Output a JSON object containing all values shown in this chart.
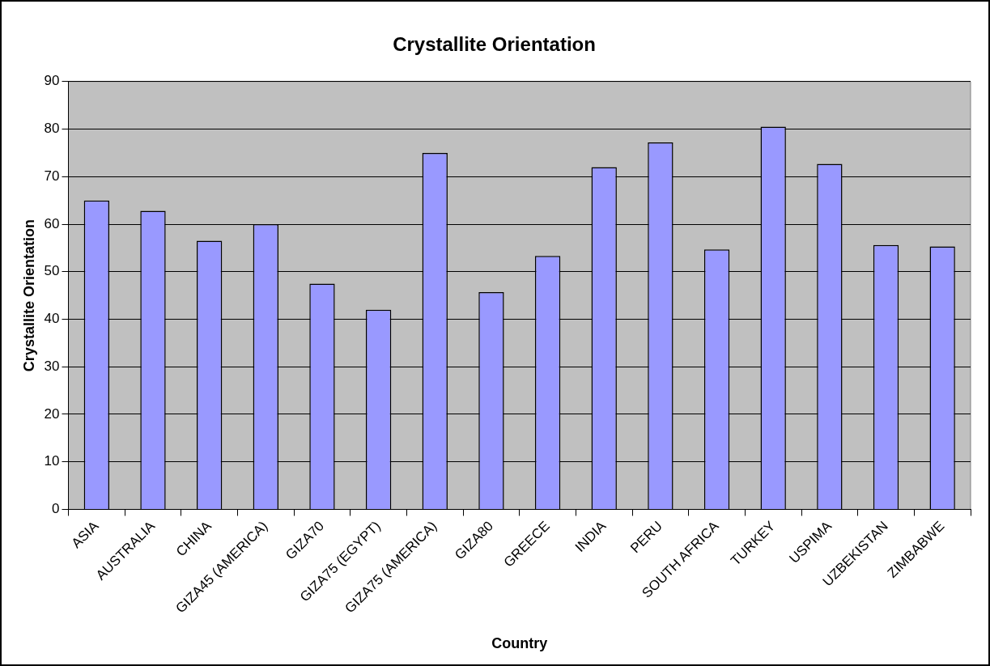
{
  "chart_data": {
    "type": "bar",
    "title": "Crystallite Orientation",
    "xlabel": "Country",
    "ylabel": "Crystallite Orientation",
    "categories": [
      "ASIA",
      "AUSTRALIA",
      "CHINA",
      "GIZA45 (AMERICA)",
      "GIZA70",
      "GIZA75 (EGYPT)",
      "GIZA75 (AMERICA)",
      "GIZA80",
      "GREECE",
      "INDIA",
      "PERU",
      "SOUTH AFRICA",
      "TURKEY",
      "USPIMA",
      "UZBEKISTAN",
      "ZIMBABWE"
    ],
    "values": [
      65,
      62.8,
      56.5,
      60,
      47.5,
      42,
      75,
      45.7,
      53.3,
      72,
      77.2,
      54.7,
      80.5,
      72.7,
      55.6,
      55.3
    ],
    "color": "#9999ff",
    "ylim": [
      0,
      90
    ],
    "yticks": [
      0,
      10,
      20,
      30,
      40,
      50,
      60,
      70,
      80,
      90
    ],
    "grid": "y",
    "legend": false
  }
}
